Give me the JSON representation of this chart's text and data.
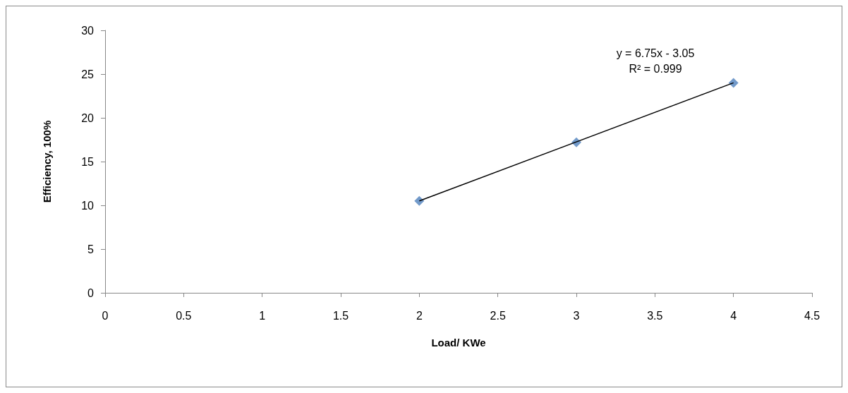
{
  "chart_data": {
    "type": "scatter",
    "xlabel": "Load/ KWe",
    "ylabel": "Efficiency, 100%",
    "xlim": [
      0,
      4.5
    ],
    "xticks": [
      0,
      0.5,
      1,
      1.5,
      2,
      2.5,
      3,
      3.5,
      4,
      4.5
    ],
    "ylim": [
      0,
      30
    ],
    "yticks": [
      0,
      5,
      10,
      15,
      20,
      25,
      30
    ],
    "grid": false,
    "series": [
      {
        "color": "#4f81bd",
        "marker": "diamond",
        "x": [
          2,
          3,
          4
        ],
        "values": [
          10.5,
          17.2,
          24.0
        ]
      },
      {
        "type": "line",
        "color": "#000000",
        "marker": "none",
        "line_style": "solid",
        "x": [
          2,
          4
        ],
        "values": [
          10.5,
          24.0
        ]
      }
    ],
    "annotations": [
      "y = 6.75x - 3.05",
      "R² = 0.999"
    ]
  }
}
